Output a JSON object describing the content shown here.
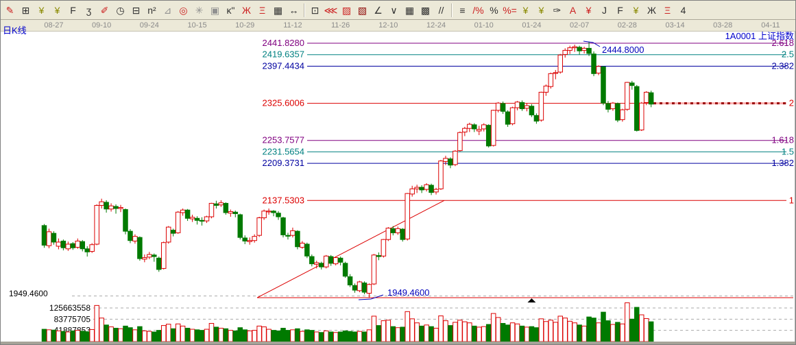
{
  "window": {
    "kline_label": "日K线",
    "symbol": "1A0001",
    "index_name": "上证指数",
    "header_right": "1A0001 上证指数"
  },
  "toolbar": {
    "items": [
      {
        "name": "brush-icon",
        "glyph": "✎",
        "color": "#cc2020"
      },
      {
        "name": "ruler-grid-icon",
        "glyph": "⊞",
        "color": "#303030"
      },
      {
        "name": "gold-section-icon",
        "glyph": "¥",
        "color": "#8a8a00"
      },
      {
        "name": "gold-channel-icon",
        "glyph": "¥",
        "color": "#8a8a00"
      },
      {
        "name": "f-grid-icon",
        "glyph": "F",
        "color": "#303030"
      },
      {
        "name": "hook-curve-icon",
        "glyph": "ʒ",
        "color": "#303030"
      },
      {
        "name": "pen-ruler-icon",
        "glyph": "✐",
        "color": "#cc2020"
      },
      {
        "name": "cycle-clock-icon",
        "glyph": "◷",
        "color": "#303030"
      },
      {
        "name": "hash-grid-icon",
        "glyph": "⊟",
        "color": "#303030"
      },
      {
        "name": "n-squared-icon",
        "glyph": "n²",
        "color": "#303030"
      },
      {
        "name": "angle-flag-icon",
        "glyph": "⊿",
        "color": "#909090"
      },
      {
        "name": "crosshair-target-icon",
        "glyph": "◎",
        "color": "#cc2020"
      },
      {
        "name": "star-burst-icon",
        "glyph": "✳",
        "color": "#909090"
      },
      {
        "name": "spiral-square-icon",
        "glyph": "▣",
        "color": "#909090"
      },
      {
        "name": "k-quote-icon",
        "glyph": "ĸ\"",
        "color": "#303030"
      },
      {
        "name": "shen-grid-icon",
        "glyph": "Ж",
        "color": "#cc2020"
      },
      {
        "name": "ying-grid-icon",
        "glyph": "Ξ",
        "color": "#cc2020"
      },
      {
        "name": "table-123-icon",
        "glyph": "▦",
        "color": "#303030"
      },
      {
        "name": "width-arrows-icon",
        "glyph": "↔",
        "color": "#303030"
      },
      {
        "name": "frame-tool-icon",
        "glyph": "⊡",
        "color": "#303030"
      },
      {
        "name": "ray-fan-icon",
        "glyph": "⋘",
        "color": "#cc2020"
      },
      {
        "name": "ray-box-icon",
        "glyph": "▨",
        "color": "#cc2020"
      },
      {
        "name": "ray-box-dark-icon",
        "glyph": "▧",
        "color": "#8b0000"
      },
      {
        "name": "angle-line-icon",
        "glyph": "∠",
        "color": "#303030"
      },
      {
        "name": "vee-lines-icon",
        "glyph": "∨",
        "color": "#303030"
      },
      {
        "name": "dense-grid-icon",
        "glyph": "▦",
        "color": "#303030"
      },
      {
        "name": "corner-grid-icon",
        "glyph": "▩",
        "color": "#303030"
      },
      {
        "name": "parallel-lines-icon",
        "glyph": "//",
        "color": "#303030"
      },
      {
        "name": "ledger-note-icon",
        "glyph": "≡",
        "color": "#303030"
      },
      {
        "name": "percent-strike-icon",
        "glyph": "/%",
        "color": "#cc2020"
      },
      {
        "name": "percent-icon",
        "glyph": "%",
        "color": "#303030"
      },
      {
        "name": "percent-line-icon",
        "glyph": "%=",
        "color": "#cc2020"
      },
      {
        "name": "gold-coin-icon",
        "glyph": "¥",
        "color": "#8a8a00"
      },
      {
        "name": "gold-coin-half-icon",
        "glyph": "¥",
        "color": "#8a8a00"
      },
      {
        "name": "notebook-pen-icon",
        "glyph": "✑",
        "color": "#303030"
      },
      {
        "name": "a-lines-icon",
        "glyph": "A",
        "color": "#cc2020"
      },
      {
        "name": "gold-slope-icon",
        "glyph": "¥",
        "color": "#cc2020"
      },
      {
        "name": "j-slope-icon",
        "glyph": "J",
        "color": "#303030"
      },
      {
        "name": "f-slope-icon",
        "glyph": "F",
        "color": "#303030"
      },
      {
        "name": "gold-slope-2-icon",
        "glyph": "¥",
        "color": "#8a8a00"
      },
      {
        "name": "shen-slope-icon",
        "glyph": "Ж",
        "color": "#303030"
      },
      {
        "name": "bian-slope-icon",
        "glyph": "Ξ",
        "color": "#cc2020"
      },
      {
        "name": "four-slope-icon",
        "glyph": "4",
        "color": "#303030"
      }
    ]
  },
  "date_axis": {
    "labels": [
      {
        "text": "08-27",
        "idx": 2
      },
      {
        "text": "09-10",
        "idx": 12
      },
      {
        "text": "09-24",
        "idx": 22
      },
      {
        "text": "10-15",
        "idx": 32
      },
      {
        "text": "10-29",
        "idx": 42
      },
      {
        "text": "11-12",
        "idx": 52
      },
      {
        "text": "11-26",
        "idx": 62
      },
      {
        "text": "12-10",
        "idx": 72
      },
      {
        "text": "12-24",
        "idx": 82
      },
      {
        "text": "01-10",
        "idx": 92
      },
      {
        "text": "01-24",
        "idx": 102
      },
      {
        "text": "02-07",
        "idx": 112
      },
      {
        "text": "02-28",
        "idx": 122
      },
      {
        "text": "03-14",
        "idx": 132
      },
      {
        "text": "03-28",
        "idx": 142
      },
      {
        "text": "04-11",
        "idx": 152
      }
    ]
  },
  "chart_data": {
    "type": "candlestick",
    "title": "1A0001 上证指数 日K线",
    "up_color": "#dc0000",
    "down_color": "#007a00",
    "fib_levels": [
      {
        "price": 2441.828,
        "price_label": "2441.8280",
        "fib_label": "2.618",
        "color": "#800080"
      },
      {
        "price": 2419.6357,
        "price_label": "2419.6357",
        "fib_label": "2.5",
        "color": "#008080"
      },
      {
        "price": 2397.4434,
        "price_label": "2397.4434",
        "fib_label": "2.382",
        "color": "#0000a0"
      },
      {
        "price": 2325.6006,
        "price_label": "2325.6006",
        "fib_label": "2",
        "color": "#dc0000",
        "selected": true
      },
      {
        "price": 2253.7577,
        "price_label": "2253.7577",
        "fib_label": "1.618",
        "color": "#800080"
      },
      {
        "price": 2231.5654,
        "price_label": "2231.5654",
        "fib_label": "1.5",
        "color": "#008080"
      },
      {
        "price": 2209.3731,
        "price_label": "2209.3731",
        "fib_label": "1.382",
        "color": "#0000a0"
      },
      {
        "price": 2137.5303,
        "price_label": "2137.5303",
        "fib_label": "1",
        "color": "#dc0000"
      }
    ],
    "support_line": {
      "price": 1949.46,
      "from_idx": 53.6,
      "color": "#dc0000"
    },
    "trend_line": {
      "from": {
        "idx": 53.6,
        "price": 1949.46
      },
      "to": {
        "idx": 83.7,
        "price": 2137.5303
      },
      "color": "#dc0000"
    },
    "annotations": [
      {
        "name": "high-annotation",
        "text": "2444.8000",
        "anchor_idx": 114,
        "anchor_price": 2444.8,
        "color": "#0000bb"
      },
      {
        "name": "low-annotation",
        "text": "1949.4600",
        "anchor_idx": 68,
        "anchor_price": 1949.46,
        "color": "#0000bb"
      }
    ],
    "marker": {
      "shape": "triangle-up",
      "idx": 102,
      "color": "#000000"
    },
    "price_axis": {
      "bottom_label": "1949.4600",
      "visible_range": [
        1944,
        2462
      ]
    },
    "volume_axis": {
      "gridlines": [
        {
          "value": 125663558,
          "label": "125663558"
        },
        {
          "value": 83775705,
          "label": "83775705"
        },
        {
          "value": 41887853,
          "label": "41887853"
        }
      ],
      "unit": "shares"
    },
    "volume_unit": "million shares",
    "candles_format": [
      "open",
      "high",
      "low",
      "close",
      "volume_millions"
    ],
    "candles": [
      [
        2089,
        2092,
        2046,
        2051,
        46
      ],
      [
        2050,
        2083,
        2045,
        2077,
        44
      ],
      [
        2074,
        2078,
        2052,
        2057,
        43
      ],
      [
        2049,
        2064,
        2043,
        2057,
        40
      ],
      [
        2059,
        2062,
        2041,
        2046,
        38
      ],
      [
        2044,
        2058,
        2040,
        2053,
        36
      ],
      [
        2054,
        2057,
        2042,
        2046,
        40
      ],
      [
        2047,
        2064,
        2044,
        2059,
        42
      ],
      [
        2058,
        2061,
        2039,
        2044,
        39
      ],
      [
        2044,
        2049,
        2029,
        2038,
        37
      ],
      [
        2039,
        2055,
        2036,
        2052,
        45
      ],
      [
        2053,
        2130,
        2051,
        2128,
        135
      ],
      [
        2128,
        2141,
        2122,
        2135,
        88
      ],
      [
        2134,
        2138,
        2114,
        2121,
        62
      ],
      [
        2121,
        2132,
        2116,
        2127,
        55
      ],
      [
        2126,
        2130,
        2112,
        2122,
        50
      ],
      [
        2122,
        2129,
        2115,
        2124,
        48
      ],
      [
        2120,
        2122,
        2072,
        2078,
        58
      ],
      [
        2078,
        2082,
        2055,
        2060,
        52
      ],
      [
        2059,
        2072,
        2054,
        2068,
        44
      ],
      [
        2066,
        2068,
        2021,
        2025,
        56
      ],
      [
        2024,
        2033,
        2018,
        2027,
        40
      ],
      [
        2028,
        2038,
        2024,
        2033,
        38
      ],
      [
        2032,
        2035,
        2019,
        2029,
        36
      ],
      [
        2026,
        2029,
        1999.5,
        2004,
        42
      ],
      [
        2006,
        2058,
        2004,
        2056,
        60
      ],
      [
        2057,
        2088,
        2054,
        2086,
        65
      ],
      [
        2080,
        2083,
        2068,
        2074,
        48
      ],
      [
        2075,
        2117,
        2073,
        2115,
        66
      ],
      [
        2114,
        2122,
        2108,
        2119,
        58
      ],
      [
        2119,
        2121,
        2098,
        2103,
        50
      ],
      [
        2102,
        2110,
        2096,
        2105,
        46
      ],
      [
        2103,
        2107,
        2091,
        2099,
        44
      ],
      [
        2099,
        2105,
        2089,
        2098,
        42
      ],
      [
        2098,
        2108,
        2094,
        2106,
        46
      ],
      [
        2106,
        2133,
        2103,
        2132,
        68
      ],
      [
        2131,
        2137,
        2122,
        2128,
        54
      ],
      [
        2129,
        2138,
        2125,
        2133,
        50
      ],
      [
        2132,
        2134,
        2110,
        2114,
        48
      ],
      [
        2113,
        2120,
        2106,
        2116,
        42
      ],
      [
        2115,
        2118,
        2105,
        2112,
        40
      ],
      [
        2110,
        2112,
        2062,
        2066,
        52
      ],
      [
        2065,
        2070,
        2053,
        2059,
        44
      ],
      [
        2058,
        2066,
        2052,
        2060,
        40
      ],
      [
        2060,
        2072,
        2056,
        2068,
        42
      ],
      [
        2070,
        2106,
        2067,
        2104,
        58
      ],
      [
        2104,
        2120,
        2100,
        2117,
        55
      ],
      [
        2116,
        2122,
        2110,
        2117,
        46
      ],
      [
        2117,
        2119,
        2107,
        2114,
        42
      ],
      [
        2113,
        2117,
        2100,
        2106,
        40
      ],
      [
        2104,
        2106,
        2066,
        2071,
        50
      ],
      [
        2070,
        2075,
        2062,
        2069,
        42
      ],
      [
        2070,
        2085,
        2066,
        2079,
        44
      ],
      [
        2078,
        2080,
        2043,
        2048,
        48
      ],
      [
        2047,
        2059,
        2044,
        2055,
        38
      ],
      [
        2053,
        2056,
        2026,
        2030,
        44
      ],
      [
        2029,
        2033,
        2010,
        2015,
        42
      ],
      [
        2014,
        2021,
        2006,
        2017,
        36
      ],
      [
        2016,
        2019,
        2004,
        2009,
        34
      ],
      [
        2009,
        2032,
        2006,
        2030,
        40
      ],
      [
        2029,
        2032,
        2011,
        2016,
        36
      ],
      [
        2015,
        2029,
        2012,
        2027,
        34
      ],
      [
        2026,
        2029,
        2012,
        2018,
        36
      ],
      [
        2016,
        2019,
        1988,
        1991,
        40
      ],
      [
        1990,
        1995,
        1970,
        1974,
        38
      ],
      [
        1973,
        1977,
        1959,
        1964,
        36
      ],
      [
        1963,
        1982,
        1960,
        1980,
        38
      ],
      [
        1978,
        1981,
        1956,
        1960,
        36
      ],
      [
        1958,
        1977,
        1949.46,
        1975,
        44
      ],
      [
        1976,
        2034,
        1974,
        2032,
        95
      ],
      [
        2031,
        2037,
        2022,
        2029,
        60
      ],
      [
        2030,
        2063,
        2027,
        2062,
        78
      ],
      [
        2062,
        2086,
        2059,
        2084,
        80
      ],
      [
        2083,
        2088,
        2070,
        2075,
        56
      ],
      [
        2075,
        2087,
        2071,
        2083,
        52
      ],
      [
        2082,
        2084,
        2058,
        2062,
        54
      ],
      [
        2063,
        2152,
        2060,
        2151,
        112
      ],
      [
        2150,
        2166,
        2145,
        2160,
        85
      ],
      [
        2160,
        2168,
        2152,
        2163,
        70
      ],
      [
        2163,
        2167,
        2152,
        2158,
        58
      ],
      [
        2159,
        2171,
        2155,
        2168,
        62
      ],
      [
        2167,
        2170,
        2148,
        2153,
        56
      ],
      [
        2154,
        2162,
        2149,
        2159,
        50
      ],
      [
        2160,
        2216,
        2158,
        2214,
        96
      ],
      [
        2213,
        2224,
        2206,
        2219,
        78
      ],
      [
        2218,
        2221,
        2200,
        2206,
        60
      ],
      [
        2207,
        2235,
        2204,
        2233,
        72
      ],
      [
        2234,
        2271,
        2232,
        2269,
        80
      ],
      [
        2270,
        2280,
        2262,
        2277,
        74
      ],
      [
        2277,
        2288,
        2270,
        2285,
        70
      ],
      [
        2284,
        2287,
        2270,
        2276,
        58
      ],
      [
        2272,
        2282,
        2264,
        2275,
        54
      ],
      [
        2276,
        2287,
        2271,
        2284,
        56
      ],
      [
        2283,
        2285,
        2240,
        2243,
        64
      ],
      [
        2244,
        2313,
        2242,
        2312,
        105
      ],
      [
        2312,
        2328,
        2308,
        2326,
        90
      ],
      [
        2325,
        2329,
        2305,
        2310,
        68
      ],
      [
        2309,
        2312,
        2280,
        2285,
        62
      ],
      [
        2286,
        2319,
        2283,
        2317,
        70
      ],
      [
        2317,
        2330,
        2312,
        2328,
        66
      ],
      [
        2327,
        2331,
        2311,
        2315,
        58
      ],
      [
        2316,
        2326,
        2310,
        2321,
        54
      ],
      [
        2320,
        2324,
        2299,
        2303,
        56
      ],
      [
        2302,
        2306,
        2286,
        2291,
        52
      ],
      [
        2293,
        2348,
        2290,
        2347,
        85
      ],
      [
        2347,
        2362,
        2340,
        2359,
        75
      ],
      [
        2358,
        2385,
        2354,
        2383,
        80
      ],
      [
        2384,
        2390,
        2372,
        2385,
        72
      ],
      [
        2386,
        2421,
        2383,
        2419,
        95
      ],
      [
        2420,
        2432,
        2414,
        2428,
        88
      ],
      [
        2428,
        2437,
        2421,
        2433,
        76
      ],
      [
        2433,
        2439,
        2425,
        2435,
        70
      ],
      [
        2434,
        2437,
        2420,
        2427,
        62
      ],
      [
        2428,
        2435,
        2422,
        2432,
        58
      ],
      [
        2432,
        2444.8,
        2417,
        2422,
        92
      ],
      [
        2421,
        2426,
        2378,
        2383,
        88
      ],
      [
        2384,
        2399,
        2380,
        2397,
        70
      ],
      [
        2396,
        2398,
        2322,
        2326,
        110
      ],
      [
        2325,
        2330,
        2308,
        2314,
        78
      ],
      [
        2315,
        2328,
        2311,
        2326,
        64
      ],
      [
        2325,
        2327,
        2289,
        2293,
        72
      ],
      [
        2294,
        2315,
        2290,
        2313,
        66
      ],
      [
        2314,
        2367,
        2311,
        2366,
        145
      ],
      [
        2365,
        2369,
        2352,
        2360,
        84
      ],
      [
        2358,
        2361,
        2271,
        2273,
        128
      ],
      [
        2274,
        2328,
        2272,
        2326,
        100
      ],
      [
        2327,
        2349,
        2322,
        2347,
        86
      ],
      [
        2346,
        2350,
        2318,
        2324,
        74
      ]
    ]
  }
}
